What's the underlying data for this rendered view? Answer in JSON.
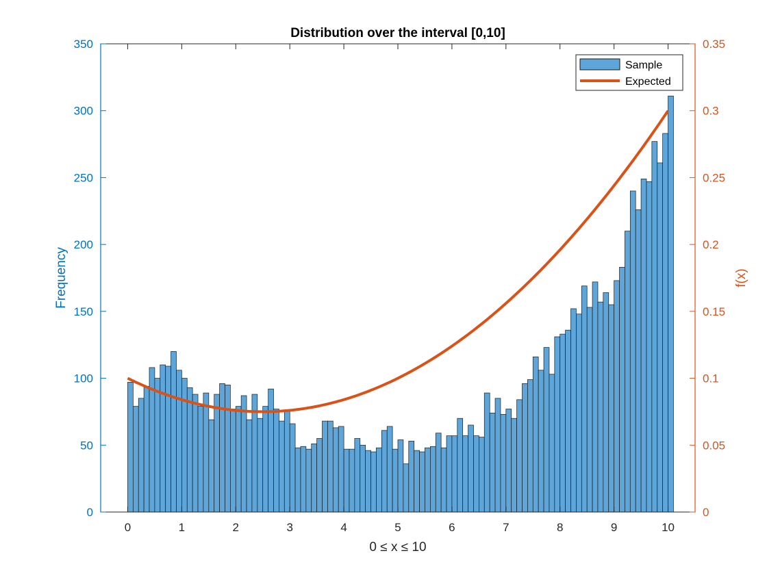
{
  "chart_data": {
    "type": "bar",
    "title": "Distribution over the interval [0,10]",
    "xlabel": "0 ≤ x ≤ 10",
    "ylabel": "Frequency",
    "y2label": "f(x)",
    "xlim": [
      -0.5,
      10.5
    ],
    "ylim": [
      0,
      350
    ],
    "y2lim": [
      0,
      0.35
    ],
    "xticks": [
      "0",
      "1",
      "2",
      "3",
      "4",
      "5",
      "6",
      "7",
      "8",
      "9",
      "10"
    ],
    "yticks": [
      "0",
      "50",
      "100",
      "150",
      "200",
      "250",
      "300",
      "350"
    ],
    "y2ticks": [
      "0",
      "0.05",
      "0.1",
      "0.15",
      "0.2",
      "0.25",
      "0.3",
      "0.35"
    ],
    "grid": false,
    "legend_position": "top-right",
    "colors": {
      "bars": "#5ea6d9",
      "bar_edge": "#1a1a1a",
      "line": "#d95319",
      "left_axis": "#0072bd",
      "right_axis": "#d95319"
    },
    "series": [
      {
        "name": "Sample",
        "type": "histogram",
        "bin_edges_start": 0,
        "bin_width": 0.1,
        "values": [
          97,
          79,
          85,
          94,
          108,
          100,
          110,
          109,
          120,
          106,
          100,
          93,
          88,
          79,
          89,
          69,
          88,
          96,
          95,
          77,
          79,
          87,
          69,
          88,
          70,
          79,
          92,
          77,
          68,
          76,
          66,
          48,
          49,
          47,
          51,
          55,
          68,
          68,
          63,
          64,
          47,
          47,
          55,
          50,
          46,
          45,
          48,
          61,
          64,
          47,
          54,
          36,
          53,
          46,
          45,
          48,
          49,
          59,
          48,
          57,
          57,
          70,
          57,
          65,
          57,
          56,
          89,
          74,
          85,
          73,
          77,
          70,
          84,
          96,
          99,
          116,
          106,
          123,
          103,
          131,
          133,
          136,
          152,
          148,
          169,
          153,
          172,
          157,
          164,
          155,
          173,
          183,
          210,
          240,
          226,
          249,
          247,
          277,
          261,
          283,
          311
        ]
      },
      {
        "name": "Expected",
        "type": "line",
        "function": "f(x) = 0.1 - 0.02x + 0.004x^2"
      }
    ]
  }
}
